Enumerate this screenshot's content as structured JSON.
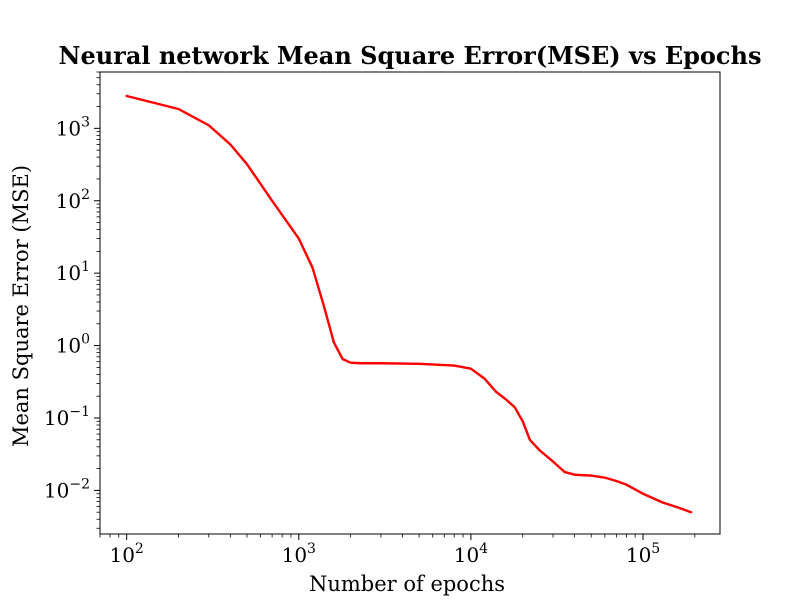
{
  "chart_data": {
    "type": "line",
    "title": "Neural network Mean Square Error(MSE) vs Epochs",
    "xlabel": "Number of epochs",
    "ylabel": "Mean Square Error (MSE)",
    "x_scale": "log",
    "y_scale": "log",
    "xlim": [
      70,
      280000
    ],
    "ylim": [
      0.0025,
      6000
    ],
    "grid": false,
    "x_ticks": [
      {
        "value": 100,
        "base": "10",
        "exp": "2"
      },
      {
        "value": 1000,
        "base": "10",
        "exp": "3"
      },
      {
        "value": 10000,
        "base": "10",
        "exp": "4"
      },
      {
        "value": 100000,
        "base": "10",
        "exp": "5"
      }
    ],
    "y_ticks": [
      {
        "value": 0.01,
        "base": "10",
        "exp": "−2"
      },
      {
        "value": 0.1,
        "base": "10",
        "exp": "−1"
      },
      {
        "value": 1,
        "base": "10",
        "exp": "0"
      },
      {
        "value": 10,
        "base": "10",
        "exp": "1"
      },
      {
        "value": 100,
        "base": "10",
        "exp": "2"
      },
      {
        "value": 1000,
        "base": "10",
        "exp": "3"
      }
    ],
    "series": [
      {
        "color": "#ff0000",
        "x": [
          100,
          200,
          300,
          400,
          500,
          700,
          1000,
          1200,
          1400,
          1600,
          1800,
          2000,
          2300,
          3000,
          5000,
          8000,
          10000,
          12000,
          14000,
          16000,
          18000,
          20000,
          22000,
          25000,
          30000,
          35000,
          40000,
          50000,
          60000,
          70000,
          80000,
          100000,
          130000,
          160000,
          190000
        ],
        "y": [
          2800,
          1850,
          1100,
          600,
          320,
          100,
          30,
          12,
          3.5,
          1.1,
          0.65,
          0.58,
          0.57,
          0.57,
          0.56,
          0.53,
          0.48,
          0.35,
          0.23,
          0.18,
          0.14,
          0.09,
          0.05,
          0.036,
          0.025,
          0.018,
          0.0165,
          0.016,
          0.015,
          0.0135,
          0.012,
          0.009,
          0.0068,
          0.0058,
          0.005
        ]
      }
    ]
  }
}
